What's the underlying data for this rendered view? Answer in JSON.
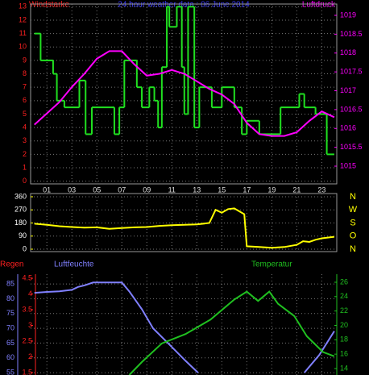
{
  "chart_data": [
    {
      "type": "line",
      "title": "24 hour weather data : 06 June 2014",
      "ylabel": "Windstarke",
      "y2label": "Luftdruck",
      "ycolor": "#ff2020",
      "y2color": "#ff00ff",
      "grid": true,
      "xlim": [
        -0.3,
        24.2
      ],
      "xticks": [
        {
          "value": 1,
          "label": "01"
        },
        {
          "value": 3,
          "label": "03"
        },
        {
          "value": 5,
          "label": "05"
        },
        {
          "value": 7,
          "label": "07"
        },
        {
          "value": 9,
          "label": "09"
        },
        {
          "value": 11,
          "label": "11"
        },
        {
          "value": 13,
          "label": "13"
        },
        {
          "value": 15,
          "label": "15"
        },
        {
          "value": 17,
          "label": "17"
        },
        {
          "value": 19,
          "label": "19"
        },
        {
          "value": 21,
          "label": "21"
        },
        {
          "value": 23,
          "label": "23"
        }
      ],
      "ylim": [
        -0.2,
        13.2
      ],
      "yticks": [
        0,
        1,
        2,
        3,
        4,
        5,
        6,
        7,
        8,
        9,
        10,
        11,
        12,
        13
      ],
      "y2lim": [
        1014.53,
        1019.3
      ],
      "y2ticks": [
        1015,
        1015.5,
        1016,
        1016.5,
        1017,
        1017.5,
        1018,
        1018.5,
        1019
      ],
      "series": [
        {
          "color": "#20e020",
          "step": true,
          "x": [
            0,
            0.5,
            1.5,
            1.8,
            2.4,
            3.6,
            4.1,
            4.6,
            6.4,
            6.8,
            7.2,
            8.2,
            8.6,
            9.2,
            9.6,
            9.9,
            10.2,
            10.6,
            10.8,
            11.4,
            11.8,
            12,
            12.3,
            12.8,
            13.2,
            14.2,
            15,
            16,
            16.6,
            17,
            18,
            19.7,
            21.2,
            21.6,
            22.5,
            23.4,
            24
          ],
          "values": [
            11,
            9,
            8,
            6,
            5.5,
            7.5,
            3.5,
            5.5,
            3.5,
            5.5,
            9,
            7,
            5.5,
            7,
            6,
            4,
            8.5,
            13,
            11.5,
            13,
            8.5,
            5,
            13,
            4,
            7,
            5.5,
            7,
            5.5,
            3.5,
            4.5,
            3.5,
            5.5,
            6.5,
            5.5,
            5,
            2,
            2
          ]
        },
        {
          "color": "#ff00ff",
          "axis": "y2",
          "x": [
            0,
            1,
            2,
            3,
            4,
            5,
            6,
            7,
            8,
            9,
            10,
            11,
            12,
            13,
            14,
            15,
            16,
            17,
            18,
            19,
            20,
            21,
            22,
            23,
            24
          ],
          "values": [
            1016.1,
            1016.4,
            1016.7,
            1017.1,
            1017.45,
            1017.85,
            1018.05,
            1018.05,
            1017.7,
            1017.4,
            1017.45,
            1017.55,
            1017.45,
            1017.25,
            1017.05,
            1016.9,
            1016.65,
            1016.15,
            1015.85,
            1015.8,
            1015.8,
            1015.9,
            1016.2,
            1016.45,
            1016.3
          ]
        }
      ]
    },
    {
      "type": "line",
      "ycolor": "#ffffff",
      "y2color": "#ffff00",
      "grid": true,
      "xlim": [
        -0.3,
        24.2
      ],
      "ylim": [
        -16.6,
        382
      ],
      "yticks": [
        0,
        90,
        180,
        270,
        360
      ],
      "y2ticks": [
        {
          "value": 360,
          "label": "N"
        },
        {
          "value": 270,
          "label": "W"
        },
        {
          "value": 180,
          "label": "S"
        },
        {
          "value": 90,
          "label": "O"
        },
        {
          "value": 0,
          "label": "N"
        }
      ],
      "series": [
        {
          "color": "#ffff00",
          "x": [
            0,
            1,
            2,
            3,
            4,
            5,
            6,
            7,
            8,
            9,
            10,
            11,
            12,
            13,
            14,
            14.5,
            15,
            15.5,
            16,
            16.8,
            17,
            18,
            19,
            20,
            21,
            21.5,
            22,
            22.5,
            23,
            24
          ],
          "values": [
            175,
            168,
            158,
            152,
            148,
            150,
            140,
            145,
            150,
            152,
            160,
            165,
            168,
            170,
            180,
            270,
            250,
            275,
            280,
            240,
            20,
            15,
            10,
            15,
            30,
            55,
            50,
            65,
            75,
            85
          ]
        }
      ]
    },
    {
      "type": "line",
      "ylabel": "Luftfeuchte",
      "y2label": "Temperatur",
      "y3label": "Regen",
      "ycolor": "#8080ff",
      "y2color": "#20c020",
      "y3color": "#ff2020",
      "grid": true,
      "xlim": [
        -0.3,
        24.2
      ],
      "ylim": [
        54.2,
        88.3
      ],
      "yticks": [
        55,
        60,
        65,
        70,
        75,
        80,
        85
      ],
      "y2lim": [
        13.1,
        27.12
      ],
      "y2ticks": [
        14,
        16,
        18,
        20,
        22,
        24,
        26
      ],
      "y3lim": [
        1.42,
        4.63
      ],
      "y3ticks": [
        1.5,
        2,
        2.5,
        3,
        3.5,
        4,
        4.5
      ],
      "series": [
        {
          "color": "#8080ff",
          "x": [
            0,
            1,
            2,
            3,
            3.5,
            4,
            4.7,
            7,
            7.6,
            8.6,
            9.5,
            10.8,
            12.1,
            13.1,
            17,
            21.6,
            22.8,
            24
          ],
          "values": [
            82,
            82.3,
            82.5,
            83,
            84,
            84.5,
            85.5,
            85.5,
            82.5,
            76.5,
            70,
            64.5,
            59,
            55,
            null,
            55,
            61,
            69
          ]
        },
        {
          "color": "#20c020",
          "axis": "y2",
          "x": [
            7.6,
            8.6,
            10.2,
            12.1,
            14.1,
            16,
            17,
            17.9,
            18.8,
            19.5,
            20.8,
            21.8,
            23.1,
            24
          ],
          "values": [
            13.1,
            14.9,
            17.5,
            18.8,
            20.8,
            23.6,
            24.7,
            23.4,
            24.7,
            23,
            21.3,
            18.5,
            16.3,
            15.7
          ]
        }
      ]
    }
  ]
}
